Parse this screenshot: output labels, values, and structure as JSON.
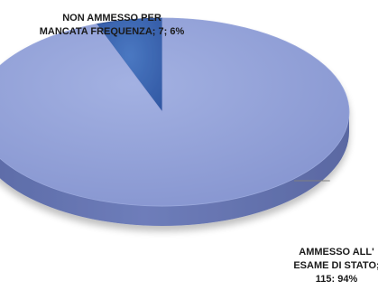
{
  "chart_data": {
    "type": "pie",
    "style": "3d",
    "slices": [
      {
        "label": "NON AMMESSO PER MANCATA FREQUENZA",
        "value": 7,
        "percent": "6%",
        "text": "NON AMMESSO PER\nMANCATA FREQUENZA; 7; 6%",
        "color": "#3F68B0"
      },
      {
        "label": "AMMESSO ALL' ESAME DI STATO",
        "value": 115,
        "percent": "94%",
        "text": "AMMESSO ALL'\nESAME DI STATO;\n115: 94%",
        "color": "#8E9ED6"
      }
    ]
  }
}
